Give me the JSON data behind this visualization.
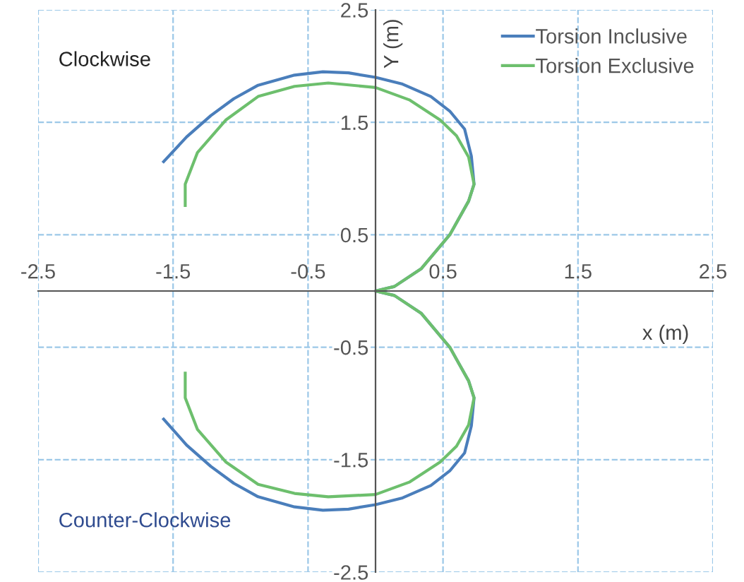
{
  "chart_data": {
    "type": "line",
    "xlabel": "x (m)",
    "ylabel": "Y (m)",
    "xlim": [
      -2.5,
      2.5
    ],
    "ylim": [
      -2.5,
      2.5
    ],
    "xticks": [
      -2.5,
      -1.5,
      -0.5,
      0.5,
      1.5,
      2.5
    ],
    "yticks": [
      -2.5,
      -1.5,
      -0.5,
      0.5,
      1.5,
      2.5
    ],
    "grid": true,
    "legend": "top right",
    "marker": "none",
    "line_style": "solid",
    "annotations": [
      "Clockwise",
      "Counter-Clockwise"
    ],
    "series": [
      {
        "name": "Torsion Inclusive",
        "color": "#4a7ebb",
        "x": [
          -1.57,
          -1.4,
          -1.22,
          -1.05,
          -0.87,
          -0.6,
          -0.39,
          -0.2,
          0,
          0.2,
          0.41,
          0.55,
          0.66,
          0.71,
          0.73,
          0.69,
          0.55,
          0.34,
          0.14,
          0,
          0.14,
          0.34,
          0.55,
          0.69,
          0.73,
          0.71,
          0.66,
          0.55,
          0.41,
          0.2,
          0,
          -0.2,
          -0.39,
          -0.6,
          -0.87,
          -1.05,
          -1.22,
          -1.4,
          -1.57
        ],
        "values": [
          1.15,
          1.37,
          1.56,
          1.71,
          1.83,
          1.92,
          1.95,
          1.94,
          1.9,
          1.84,
          1.73,
          1.6,
          1.44,
          1.2,
          0.95,
          0.8,
          0.5,
          0.2,
          0.04,
          0,
          -0.04,
          -0.2,
          -0.5,
          -0.8,
          -0.95,
          -1.2,
          -1.44,
          -1.6,
          -1.73,
          -1.84,
          -1.9,
          -1.94,
          -1.95,
          -1.92,
          -1.83,
          -1.71,
          -1.56,
          -1.37,
          -1.14
        ]
      },
      {
        "name": "Torsion Exclusive",
        "color": "#6dbf6d",
        "x": [
          -1.41,
          -1.41,
          -1.32,
          -1.11,
          -0.87,
          -0.6,
          -0.35,
          0,
          0.25,
          0.48,
          0.6,
          0.69,
          0.73,
          0.69,
          0.55,
          0.34,
          0.14,
          0,
          0.14,
          0.34,
          0.55,
          0.69,
          0.73,
          0.69,
          0.6,
          0.48,
          0.25,
          0,
          -0.35,
          -0.6,
          -0.87,
          -1.11,
          -1.32,
          -1.41,
          -1.41
        ],
        "values": [
          0.76,
          0.95,
          1.23,
          1.52,
          1.73,
          1.82,
          1.85,
          1.81,
          1.7,
          1.52,
          1.38,
          1.19,
          0.95,
          0.8,
          0.5,
          0.2,
          0.04,
          0,
          -0.04,
          -0.2,
          -0.5,
          -0.8,
          -0.95,
          -1.19,
          -1.38,
          -1.52,
          -1.7,
          -1.81,
          -1.83,
          -1.8,
          -1.72,
          -1.52,
          -1.23,
          -0.95,
          -0.73
        ]
      }
    ]
  }
}
